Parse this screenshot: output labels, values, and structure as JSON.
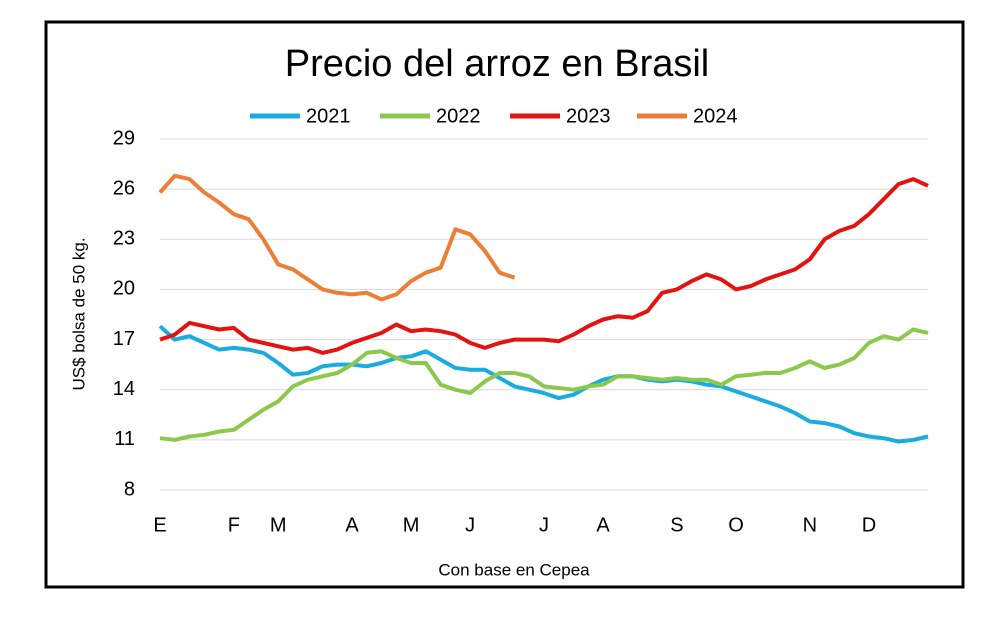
{
  "chart_data": {
    "type": "line",
    "title": "Precio del arroz en Brasil",
    "y_label": "US$ bolsa de 50 kg.",
    "x_label": "Con base en Cepea",
    "categories": [
      "E",
      null,
      null,
      null,
      null,
      "F",
      null,
      null,
      "M",
      null,
      null,
      null,
      null,
      "A",
      null,
      null,
      null,
      "M",
      null,
      null,
      null,
      "J",
      null,
      null,
      null,
      null,
      "J",
      null,
      null,
      null,
      "A",
      null,
      null,
      null,
      null,
      "S",
      null,
      null,
      null,
      "O",
      null,
      null,
      null,
      null,
      "N",
      null,
      null,
      null,
      "D",
      null,
      null,
      null,
      null
    ],
    "ylim": [
      8,
      29
    ],
    "yticks": [
      8,
      11,
      14,
      17,
      20,
      23,
      26,
      29
    ],
    "grid": true,
    "legend": "top",
    "series": [
      {
        "name": "2021",
        "color": "#1aabe0",
        "values": [
          17.8,
          17.0,
          17.2,
          16.8,
          16.4,
          16.5,
          16.4,
          16.2,
          15.6,
          14.9,
          15.0,
          15.4,
          15.5,
          15.5,
          15.4,
          15.6,
          15.9,
          16.0,
          16.3,
          15.8,
          15.3,
          15.2,
          15.2,
          14.7,
          14.2,
          14.0,
          13.8,
          13.5,
          13.7,
          14.2,
          14.6,
          14.8,
          14.8,
          14.6,
          14.5,
          14.6,
          14.5,
          14.3,
          14.2,
          13.9,
          13.6,
          13.3,
          13.0,
          12.6,
          12.1,
          12.0,
          11.8,
          11.4,
          11.2,
          11.1,
          10.9,
          11.0,
          11.2
        ]
      },
      {
        "name": "2022",
        "color": "#8cc84b",
        "values": [
          11.1,
          11.0,
          11.2,
          11.3,
          11.5,
          11.6,
          12.2,
          12.8,
          13.3,
          14.2,
          14.6,
          14.8,
          15.0,
          15.5,
          16.2,
          16.3,
          15.9,
          15.6,
          15.6,
          14.3,
          14.0,
          13.8,
          14.5,
          15.0,
          15.0,
          14.8,
          14.2,
          14.1,
          14.0,
          14.2,
          14.3,
          14.8,
          14.8,
          14.7,
          14.6,
          14.7,
          14.6,
          14.6,
          14.3,
          14.8,
          14.9,
          15.0,
          15.0,
          15.3,
          15.7,
          15.3,
          15.5,
          15.9,
          16.8,
          17.2,
          17.0,
          17.6,
          17.4
        ]
      },
      {
        "name": "2023",
        "color": "#e3140f",
        "values": [
          17.0,
          17.3,
          18.0,
          17.8,
          17.6,
          17.7,
          17.0,
          16.8,
          16.6,
          16.4,
          16.5,
          16.2,
          16.4,
          16.8,
          17.1,
          17.4,
          17.9,
          17.5,
          17.6,
          17.5,
          17.3,
          16.8,
          16.5,
          16.8,
          17.0,
          17.0,
          17.0,
          16.9,
          17.3,
          17.8,
          18.2,
          18.4,
          18.3,
          18.7,
          19.8,
          20.0,
          20.5,
          20.9,
          20.6,
          20.0,
          20.2,
          20.6,
          20.9,
          21.2,
          21.8,
          23.0,
          23.5,
          23.8,
          24.5,
          25.4,
          26.3,
          26.6,
          26.2
        ]
      },
      {
        "name": "2024",
        "color": "#ec7e35",
        "values": [
          25.8,
          26.8,
          26.6,
          25.8,
          25.2,
          24.5,
          24.2,
          23.0,
          21.5,
          21.2,
          20.6,
          20.0,
          19.8,
          19.7,
          19.8,
          19.4,
          19.7,
          20.5,
          21.0,
          21.3,
          23.6,
          23.3,
          22.3,
          21.0,
          20.7,
          null,
          null,
          null,
          null,
          null,
          null,
          null,
          null,
          null,
          null,
          null,
          null,
          null,
          null,
          null,
          null,
          null,
          null,
          null,
          null,
          null,
          null,
          null,
          null,
          null,
          null,
          null,
          null
        ]
      }
    ]
  }
}
